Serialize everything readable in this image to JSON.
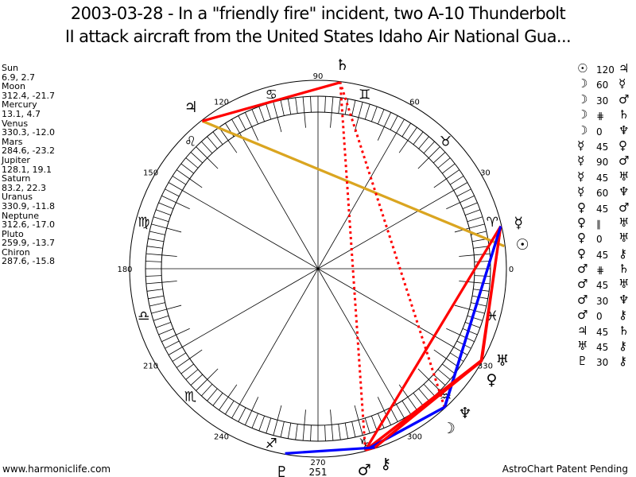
{
  "title": {
    "line1": "2003-03-28 - In a \"friendly fire\" incident, two A-10 Thunderbolt",
    "line2": "II attack aircraft from the United States Idaho Air National Gua..."
  },
  "planets": [
    {
      "name": "Sun",
      "coords": "6.9, 2.7",
      "longitude": 6.9,
      "glyph": "☉"
    },
    {
      "name": "Moon",
      "coords": "312.4, -21.7",
      "longitude": 312.4,
      "glyph": "☽"
    },
    {
      "name": "Mercury",
      "coords": "13.1, 4.7",
      "longitude": 13.1,
      "glyph": "☿"
    },
    {
      "name": "Venus",
      "coords": "330.3, -12.0",
      "longitude": 330.3,
      "glyph": "♀"
    },
    {
      "name": "Mars",
      "coords": "284.6, -23.2",
      "longitude": 284.6,
      "glyph": "♂"
    },
    {
      "name": "Jupiter",
      "coords": "128.1, 19.1",
      "longitude": 128.1,
      "glyph": "♃"
    },
    {
      "name": "Saturn",
      "coords": "83.2, 22.3",
      "longitude": 83.2,
      "glyph": "♄"
    },
    {
      "name": "Uranus",
      "coords": "330.9, -11.8",
      "longitude": 330.9,
      "glyph": "♅"
    },
    {
      "name": "Neptune",
      "coords": "312.6, -17.0",
      "longitude": 312.6,
      "glyph": "♆"
    },
    {
      "name": "Pluto",
      "coords": "259.9, -13.7",
      "longitude": 259.9,
      "glyph": "♇"
    },
    {
      "name": "Chiron",
      "coords": "287.6, -15.8",
      "longitude": 287.6,
      "glyph": "⚷"
    }
  ],
  "aspects": [
    {
      "p1": "Sun",
      "g1": "☉",
      "aspect": "120",
      "p2": "Jupiter",
      "g2": "♃"
    },
    {
      "p1": "Moon",
      "g1": "☽",
      "aspect": "60",
      "p2": "Mercury",
      "g2": "☿"
    },
    {
      "p1": "Moon",
      "g1": "☽",
      "aspect": "30",
      "p2": "Mars",
      "g2": "♂"
    },
    {
      "p1": "Moon",
      "g1": "☽",
      "aspect": "⋕",
      "p2": "Saturn",
      "g2": "♄"
    },
    {
      "p1": "Moon",
      "g1": "☽",
      "aspect": "0",
      "p2": "Neptune",
      "g2": "♆"
    },
    {
      "p1": "Mercury",
      "g1": "☿",
      "aspect": "45",
      "p2": "Venus",
      "g2": "♀"
    },
    {
      "p1": "Mercury",
      "g1": "☿",
      "aspect": "90",
      "p2": "Mars",
      "g2": "♂"
    },
    {
      "p1": "Mercury",
      "g1": "☿",
      "aspect": "45",
      "p2": "Uranus",
      "g2": "♅"
    },
    {
      "p1": "Mercury",
      "g1": "☿",
      "aspect": "60",
      "p2": "Neptune",
      "g2": "♆"
    },
    {
      "p1": "Venus",
      "g1": "♀",
      "aspect": "45",
      "p2": "Mars",
      "g2": "♂"
    },
    {
      "p1": "Venus",
      "g1": "♀",
      "aspect": "∥",
      "p2": "Uranus",
      "g2": "♅"
    },
    {
      "p1": "Venus",
      "g1": "♀",
      "aspect": "0",
      "p2": "Uranus",
      "g2": "♅"
    },
    {
      "p1": "Venus",
      "g1": "♀",
      "aspect": "45",
      "p2": "Chiron",
      "g2": "⚷"
    },
    {
      "p1": "Mars",
      "g1": "♂",
      "aspect": "⋕",
      "p2": "Saturn",
      "g2": "♄"
    },
    {
      "p1": "Mars",
      "g1": "♂",
      "aspect": "45",
      "p2": "Uranus",
      "g2": "♅"
    },
    {
      "p1": "Mars",
      "g1": "♂",
      "aspect": "30",
      "p2": "Neptune",
      "g2": "♆"
    },
    {
      "p1": "Mars",
      "g1": "♂",
      "aspect": "0",
      "p2": "Chiron",
      "g2": "⚷"
    },
    {
      "p1": "Jupiter",
      "g1": "♃",
      "aspect": "45",
      "p2": "Saturn",
      "g2": "♄"
    },
    {
      "p1": "Uranus",
      "g1": "♅",
      "aspect": "45",
      "p2": "Chiron",
      "g2": "⚷"
    },
    {
      "p1": "Pluto",
      "g1": "♇",
      "aspect": "30",
      "p2": "Chiron",
      "g2": "⚷"
    }
  ],
  "aspect_colors": {
    "0": "#ff0000",
    "30": "#0000ff",
    "45": "#ff0000",
    "60": "#0000ff",
    "90": "#ff0000",
    "120": "#daa520",
    "∥": "#ff0000",
    "⋕": "#ff0000"
  },
  "wheel": {
    "degree_labels": [
      "0",
      "30",
      "60",
      "90",
      "120",
      "150",
      "180",
      "210",
      "240",
      "270",
      "300",
      "330"
    ],
    "extra_label": "251",
    "signs": [
      "♈",
      "♉",
      "♊",
      "♋",
      "♌",
      "♍",
      "♎",
      "♏",
      "♐",
      "♑",
      "♒",
      "♓"
    ]
  },
  "footer": {
    "left": "www.harmoniclife.com",
    "right": "AstroChart Patent Pending"
  }
}
